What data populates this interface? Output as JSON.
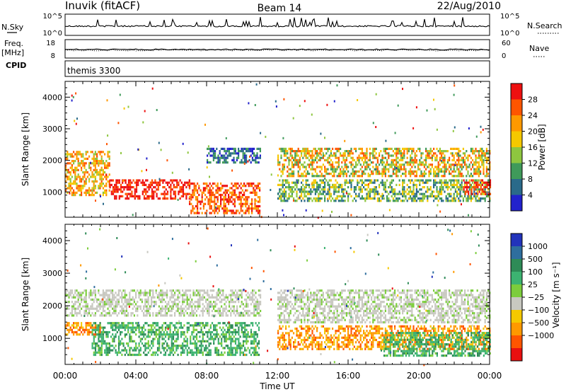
{
  "header": {
    "station": "Inuvik (fitACF)",
    "beam": "Beam 14",
    "date": "22/Aug/2010"
  },
  "strips": {
    "nsky_label": "N.Sky",
    "nsky_ticks": [
      "10^5",
      "10^0"
    ],
    "nsearch_label": "N.Search",
    "nsearch_ticks": [
      "10^5",
      "10^0"
    ],
    "freq_label": "Freq.",
    "freq_unit": "[MHz]",
    "freq_ticks": [
      "18",
      "8"
    ],
    "nave_label": "Nave",
    "nave_ticks": [
      "60",
      "0"
    ],
    "cpid_label": "CPID",
    "cpid_value": "themis 3300"
  },
  "x_axis": {
    "label": "Time UT",
    "ticks": [
      "00:00",
      "04:00",
      "08:00",
      "12:00",
      "16:00",
      "20:00",
      "00:00"
    ]
  },
  "y_axis": {
    "label": "Slant Range [km]",
    "ticks": [
      "4000",
      "3000",
      "2000",
      "1000"
    ]
  },
  "power_colorbar": {
    "label": "Power [dB]",
    "ticks": [
      "28",
      "24",
      "20",
      "16",
      "12",
      "8",
      "4"
    ],
    "colors": [
      "#ee1010",
      "#ff5500",
      "#ff9900",
      "#f5c800",
      "#8ec63f",
      "#3f9a5a",
      "#2a6a8a",
      "#2222cc"
    ]
  },
  "velocity_colorbar": {
    "label": "Velocity [m s⁻¹]",
    "ticks": [
      "1000",
      "500",
      "100",
      "25",
      "−25",
      "−100",
      "−500",
      "−1000"
    ],
    "colors": [
      "#2233bb",
      "#2e6e9e",
      "#2e8b57",
      "#3cb371",
      "#7ccd3c",
      "#c8c8c0",
      "#f5c800",
      "#ff9900",
      "#ff5500",
      "#e81010"
    ]
  },
  "chart_data": {
    "type": "heatmap",
    "title": "Inuvik (fitACF) Beam 14 22/Aug/2010",
    "xlabel": "Time UT",
    "ylabel": "Slant Range [km]",
    "xlim": [
      "00:00",
      "24:00"
    ],
    "ylim": [
      200,
      4500
    ],
    "panels": [
      {
        "name": "Power [dB]",
        "colorbar_range": [
          0,
          32
        ],
        "regions": [
          {
            "t_start": 0.0,
            "t_end": 2.5,
            "r_min": 900,
            "r_max": 2300,
            "level": "16-24"
          },
          {
            "t_start": 2.5,
            "t_end": 7.0,
            "r_min": 800,
            "r_max": 1400,
            "level": ">28"
          },
          {
            "t_start": 7.0,
            "t_end": 11.0,
            "r_min": 300,
            "r_max": 1300,
            "level": "20-28"
          },
          {
            "t_start": 8.0,
            "t_end": 11.0,
            "r_min": 1900,
            "r_max": 2400,
            "level": "4-12"
          },
          {
            "t_start": 12.0,
            "t_end": 24.0,
            "r_min": 1500,
            "r_max": 2400,
            "level": "12-24"
          },
          {
            "t_start": 12.0,
            "t_end": 24.0,
            "r_min": 700,
            "r_max": 1400,
            "level": "8-16"
          },
          {
            "t_start": 22.5,
            "t_end": 24.0,
            "r_min": 900,
            "r_max": 1400,
            "level": "24-28"
          }
        ]
      },
      {
        "name": "Velocity [m s⁻¹]",
        "colorbar_range": [
          -1000,
          1000
        ],
        "regions": [
          {
            "t_start": 0.0,
            "t_end": 11.0,
            "r_min": 1700,
            "r_max": 2500,
            "level": "-25..25"
          },
          {
            "t_start": 0.0,
            "t_end": 2.0,
            "r_min": 1100,
            "r_max": 1500,
            "level": "-500..-100"
          },
          {
            "t_start": 1.5,
            "t_end": 11.0,
            "r_min": 500,
            "r_max": 1500,
            "level": "100..500"
          },
          {
            "t_start": 12.0,
            "t_end": 24.0,
            "r_min": 1500,
            "r_max": 2500,
            "level": "-25..25"
          },
          {
            "t_start": 12.0,
            "t_end": 24.0,
            "r_min": 700,
            "r_max": 1400,
            "level": "-500..-100"
          },
          {
            "t_start": 18.0,
            "t_end": 24.0,
            "r_min": 500,
            "r_max": 1200,
            "level": "100..500"
          }
        ]
      }
    ]
  }
}
